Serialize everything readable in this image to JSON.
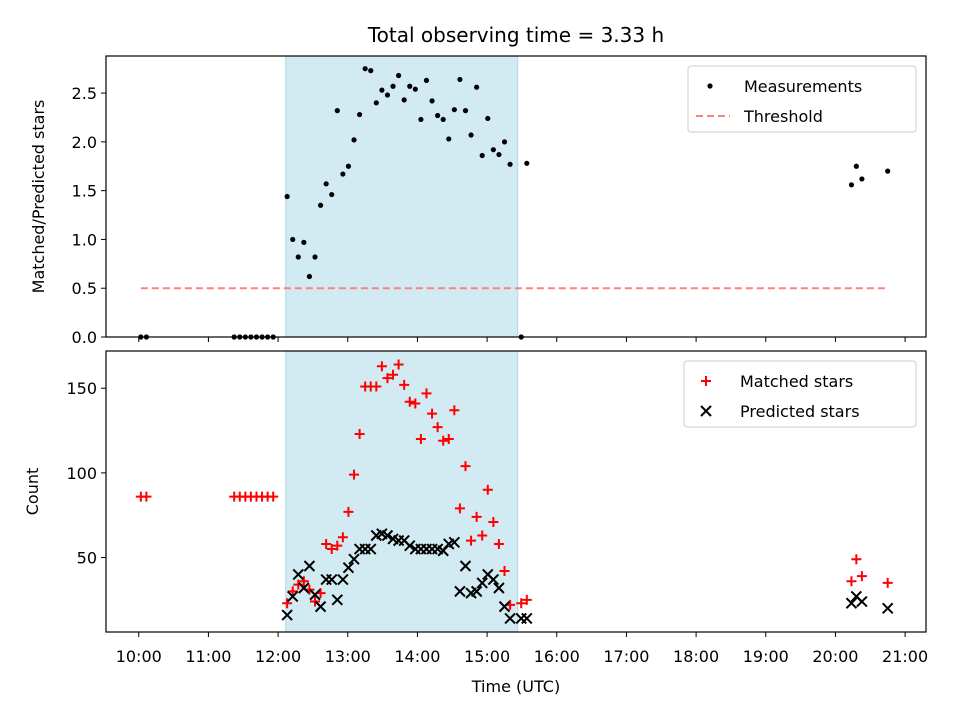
{
  "chart_data": {
    "title": "Total observing time = 3.33 h",
    "xlabel": "Time (UTC)",
    "x_tick_labels": [
      "10:00",
      "11:00",
      "12:00",
      "13:00",
      "14:00",
      "15:00",
      "16:00",
      "17:00",
      "18:00",
      "19:00",
      "20:00",
      "21:00"
    ],
    "x_ticks": [
      10,
      11,
      12,
      13,
      14,
      15,
      16,
      17,
      18,
      19,
      20,
      21
    ],
    "xlim": [
      9.53,
      21.3
    ],
    "shaded_span": [
      12.11,
      15.44
    ],
    "colors": {
      "shade": "#add8e6",
      "matched": "#ff0000",
      "predicted": "#000000",
      "threshold": "#ff8080",
      "measurement": "#000000"
    },
    "panels": [
      {
        "type": "scatter",
        "ylabel": "Matched/Predicted stars",
        "ylim": [
          0,
          2.88
        ],
        "y_ticks": [
          0.0,
          0.5,
          1.0,
          1.5,
          2.0,
          2.5
        ],
        "y_tick_labels": [
          "0.0",
          "0.5",
          "1.0",
          "1.5",
          "2.0",
          "2.5"
        ],
        "legend": {
          "placement": "upper right",
          "entries": [
            "Measurements",
            "Threshold"
          ]
        },
        "series": [
          {
            "name": "Measurements",
            "marker": "dot",
            "points": [
              [
                10.03,
                0
              ],
              [
                10.11,
                0
              ],
              [
                11.37,
                0
              ],
              [
                11.45,
                0
              ],
              [
                11.53,
                0
              ],
              [
                11.61,
                0
              ],
              [
                11.69,
                0
              ],
              [
                11.77,
                0
              ],
              [
                11.85,
                0
              ],
              [
                11.93,
                0
              ],
              [
                12.13,
                1.44
              ],
              [
                12.21,
                1.0
              ],
              [
                12.29,
                0.82
              ],
              [
                12.37,
                0.97
              ],
              [
                12.45,
                0.62
              ],
              [
                12.53,
                0.82
              ],
              [
                12.61,
                1.35
              ],
              [
                12.69,
                1.57
              ],
              [
                12.77,
                1.46
              ],
              [
                12.85,
                2.32
              ],
              [
                12.93,
                1.67
              ],
              [
                13.01,
                1.75
              ],
              [
                13.09,
                2.02
              ],
              [
                13.17,
                2.28
              ],
              [
                13.25,
                2.75
              ],
              [
                13.33,
                2.73
              ],
              [
                13.41,
                2.4
              ],
              [
                13.49,
                2.53
              ],
              [
                13.57,
                2.48
              ],
              [
                13.65,
                2.57
              ],
              [
                13.73,
                2.68
              ],
              [
                13.81,
                2.43
              ],
              [
                13.89,
                2.57
              ],
              [
                13.97,
                2.54
              ],
              [
                14.05,
                2.23
              ],
              [
                14.13,
                2.63
              ],
              [
                14.21,
                2.42
              ],
              [
                14.29,
                2.27
              ],
              [
                14.37,
                2.23
              ],
              [
                14.45,
                2.03
              ],
              [
                14.53,
                2.33
              ],
              [
                14.61,
                2.64
              ],
              [
                14.69,
                2.32
              ],
              [
                14.77,
                2.07
              ],
              [
                14.85,
                2.56
              ],
              [
                14.93,
                1.86
              ],
              [
                15.01,
                2.24
              ],
              [
                15.09,
                1.92
              ],
              [
                15.17,
                1.87
              ],
              [
                15.25,
                2.0
              ],
              [
                15.33,
                1.77
              ],
              [
                15.49,
                0
              ],
              [
                15.57,
                1.78
              ],
              [
                20.23,
                1.56
              ],
              [
                20.3,
                1.75
              ],
              [
                20.38,
                1.62
              ],
              [
                20.75,
                1.7
              ]
            ]
          },
          {
            "name": "Threshold",
            "type": "line",
            "style": "dashed",
            "points": [
              [
                10.03,
                0.5
              ],
              [
                20.75,
                0.5
              ]
            ]
          }
        ]
      },
      {
        "type": "scatter",
        "ylabel": "Count",
        "ylim": [
          6,
          172
        ],
        "y_ticks": [
          50,
          100,
          150
        ],
        "y_tick_labels": [
          "50",
          "100",
          "150"
        ],
        "legend": {
          "placement": "upper right",
          "entries": [
            "Matched stars",
            "Predicted stars"
          ]
        },
        "series": [
          {
            "name": "Matched stars",
            "marker": "plus",
            "points": [
              [
                10.03,
                86
              ],
              [
                10.11,
                86
              ],
              [
                11.37,
                86
              ],
              [
                11.45,
                86
              ],
              [
                11.53,
                86
              ],
              [
                11.61,
                86
              ],
              [
                11.69,
                86
              ],
              [
                11.77,
                86
              ],
              [
                11.85,
                86
              ],
              [
                11.93,
                86
              ],
              [
                12.13,
                23
              ],
              [
                12.21,
                30
              ],
              [
                12.29,
                34
              ],
              [
                12.37,
                36
              ],
              [
                12.45,
                31
              ],
              [
                12.53,
                24
              ],
              [
                12.61,
                29
              ],
              [
                12.69,
                58
              ],
              [
                12.77,
                55
              ],
              [
                12.85,
                57
              ],
              [
                12.93,
                62
              ],
              [
                13.01,
                77
              ],
              [
                13.09,
                99
              ],
              [
                13.17,
                123
              ],
              [
                13.25,
                151
              ],
              [
                13.33,
                151
              ],
              [
                13.41,
                151
              ],
              [
                13.49,
                163
              ],
              [
                13.57,
                156
              ],
              [
                13.65,
                158
              ],
              [
                13.73,
                164
              ],
              [
                13.81,
                152
              ],
              [
                13.89,
                142
              ],
              [
                13.97,
                141
              ],
              [
                14.05,
                120
              ],
              [
                14.13,
                147
              ],
              [
                14.21,
                135
              ],
              [
                14.29,
                127
              ],
              [
                14.37,
                119
              ],
              [
                14.45,
                120
              ],
              [
                14.53,
                137
              ],
              [
                14.61,
                79
              ],
              [
                14.69,
                104
              ],
              [
                14.77,
                60
              ],
              [
                14.85,
                74
              ],
              [
                14.93,
                63
              ],
              [
                15.01,
                90
              ],
              [
                15.09,
                71
              ],
              [
                15.17,
                58
              ],
              [
                15.25,
                42
              ],
              [
                15.33,
                22
              ],
              [
                15.49,
                23
              ],
              [
                15.57,
                25
              ],
              [
                20.23,
                36
              ],
              [
                20.3,
                49
              ],
              [
                20.38,
                39
              ],
              [
                20.75,
                35
              ]
            ]
          },
          {
            "name": "Predicted stars",
            "marker": "x",
            "points": [
              [
                12.13,
                16
              ],
              [
                12.21,
                27
              ],
              [
                12.29,
                40
              ],
              [
                12.37,
                32
              ],
              [
                12.45,
                45
              ],
              [
                12.53,
                28
              ],
              [
                12.61,
                21
              ],
              [
                12.69,
                37
              ],
              [
                12.77,
                37
              ],
              [
                12.85,
                25
              ],
              [
                12.93,
                37
              ],
              [
                13.01,
                44
              ],
              [
                13.09,
                49
              ],
              [
                13.17,
                55
              ],
              [
                13.25,
                55
              ],
              [
                13.33,
                55
              ],
              [
                13.41,
                63
              ],
              [
                13.49,
                64
              ],
              [
                13.57,
                63
              ],
              [
                13.65,
                61
              ],
              [
                13.73,
                60
              ],
              [
                13.81,
                60
              ],
              [
                13.89,
                57
              ],
              [
                13.97,
                55
              ],
              [
                14.05,
                55
              ],
              [
                14.13,
                55
              ],
              [
                14.21,
                55
              ],
              [
                14.29,
                55
              ],
              [
                14.37,
                54
              ],
              [
                14.45,
                58
              ],
              [
                14.53,
                59
              ],
              [
                14.61,
                30
              ],
              [
                14.69,
                45
              ],
              [
                14.77,
                29
              ],
              [
                14.85,
                30
              ],
              [
                14.93,
                35
              ],
              [
                15.01,
                40
              ],
              [
                15.09,
                37
              ],
              [
                15.17,
                32
              ],
              [
                15.25,
                21
              ],
              [
                15.33,
                14
              ],
              [
                15.49,
                14
              ],
              [
                15.57,
                14
              ],
              [
                20.23,
                23
              ],
              [
                20.3,
                27
              ],
              [
                20.38,
                24
              ],
              [
                20.75,
                20
              ]
            ]
          }
        ]
      }
    ]
  }
}
